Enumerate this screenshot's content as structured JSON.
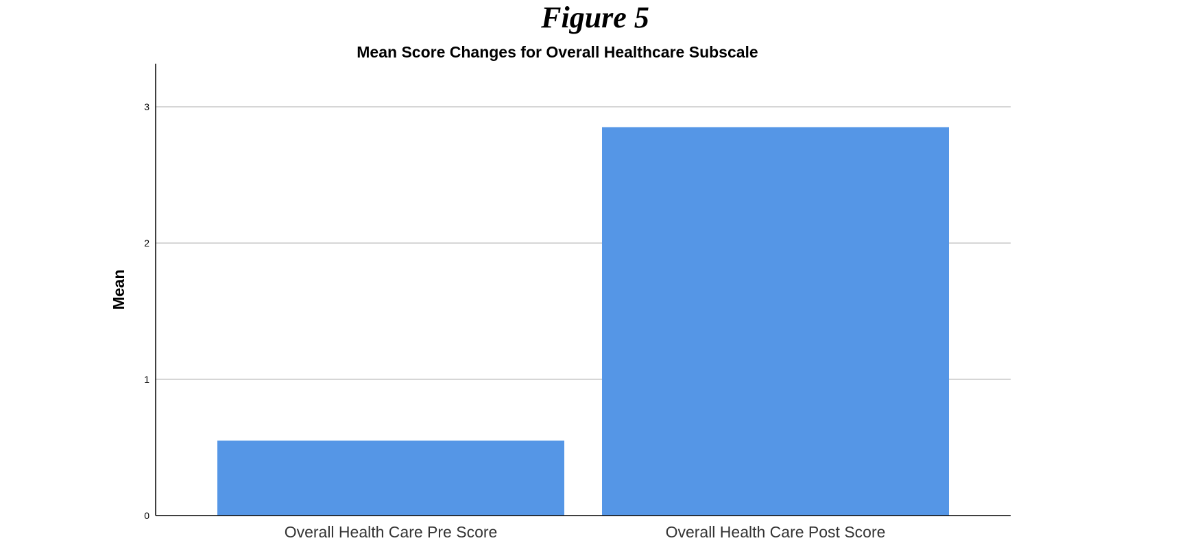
{
  "figure_label": "Figure 5",
  "chart_data": {
    "type": "bar",
    "title": "Mean Score Changes for Overall Healthcare Subscale",
    "xlabel": "",
    "ylabel": "Mean",
    "categories": [
      "Overall Health Care Pre Score",
      "Overall Health Care Post Score"
    ],
    "values": [
      0.55,
      2.85
    ],
    "ylim": [
      0,
      3.33
    ],
    "yticks": [
      0,
      1,
      2,
      3
    ],
    "grid": true,
    "legend": "none",
    "bar_color": "#5596e6",
    "gridline_color": "#c8c8c8",
    "axis_color": "#000000"
  }
}
